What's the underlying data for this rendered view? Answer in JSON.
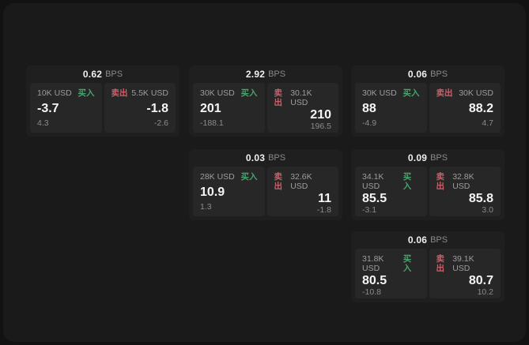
{
  "app": {
    "bps_unit": "BPS",
    "buy_label": "买入",
    "sell_label": "卖出",
    "colors": {
      "background": "#121212",
      "panel": "#1a1a1a",
      "card": "#1f1f1f",
      "tile": "#272727",
      "buy_green": "#46a56b",
      "sell_red": "#ce5e69",
      "text_primary": "#f5f5f5",
      "text_secondary": "#9d9d9d"
    }
  },
  "cards": [
    {
      "bps": "0.62",
      "buy": {
        "notional": "10K USD",
        "price": "-3.7",
        "delta": "4.3"
      },
      "sell": {
        "notional": "5.5K USD",
        "price": "-1.8",
        "delta": "-2.6"
      }
    },
    {
      "bps": "2.92",
      "buy": {
        "notional": "30K USD",
        "price": "201",
        "delta": "-188.1"
      },
      "sell": {
        "notional": "30.1K USD",
        "price": "210",
        "delta": "196.5"
      }
    },
    {
      "bps": "0.06",
      "buy": {
        "notional": "30K USD",
        "price": "88",
        "delta": "-4.9"
      },
      "sell": {
        "notional": "30K USD",
        "price": "88.2",
        "delta": "4.7"
      }
    },
    {
      "bps": "0.03",
      "buy": {
        "notional": "28K USD",
        "price": "10.9",
        "delta": "1.3"
      },
      "sell": {
        "notional": "32.6K USD",
        "price": "11",
        "delta": "-1.8"
      }
    },
    {
      "bps": "0.09",
      "buy": {
        "notional": "34.1K USD",
        "price": "85.5",
        "delta": "-3.1"
      },
      "sell": {
        "notional": "32.8K USD",
        "price": "85.8",
        "delta": "3.0"
      }
    },
    {
      "bps": "0.06",
      "buy": {
        "notional": "31.8K USD",
        "price": "80.5",
        "delta": "-10.8"
      },
      "sell": {
        "notional": "39.1K USD",
        "price": "80.7",
        "delta": "10.2"
      }
    }
  ]
}
